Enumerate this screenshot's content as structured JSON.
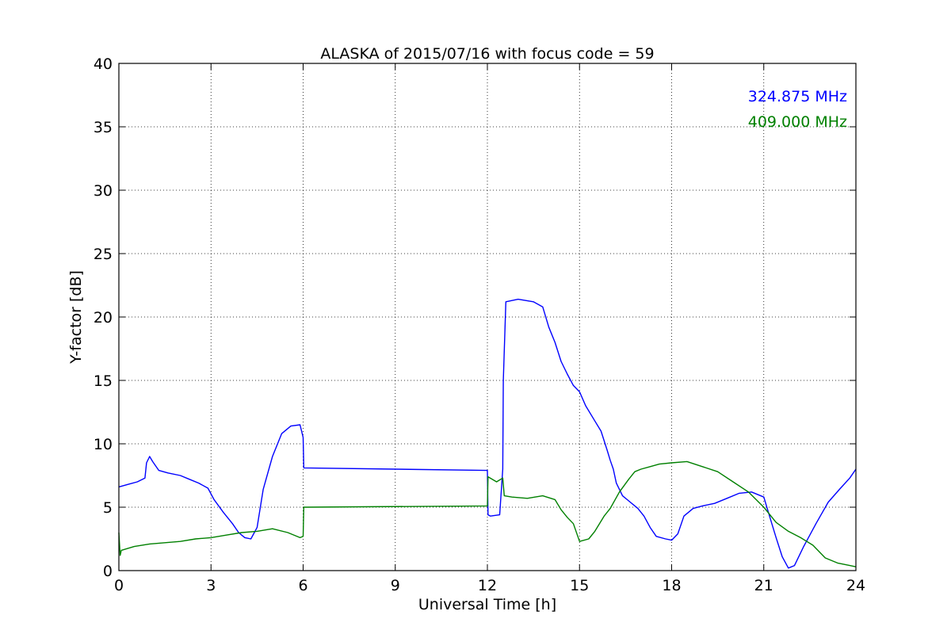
{
  "chart_data": {
    "type": "line",
    "title": "ALASKA of 2015/07/16 with focus code = 59",
    "xlabel": "Universal Time [h]",
    "ylabel": "Y-factor [dB]",
    "xlim": [
      0,
      24
    ],
    "ylim": [
      0,
      40
    ],
    "xticks": [
      0,
      3,
      6,
      9,
      12,
      15,
      18,
      21,
      24
    ],
    "yticks": [
      0,
      5,
      10,
      15,
      20,
      25,
      30,
      35,
      40
    ],
    "grid": true,
    "legend_position": "top-right",
    "series": [
      {
        "name": "324.875 MHz",
        "color": "#0000ff",
        "x": [
          0,
          0.3,
          0.6,
          0.85,
          0.9,
          1.0,
          1.1,
          1.3,
          1.6,
          2.0,
          2.3,
          2.6,
          2.9,
          3.1,
          3.4,
          3.7,
          3.9,
          4.1,
          4.3,
          4.5,
          4.7,
          5.0,
          5.3,
          5.6,
          5.9,
          6.0,
          6.02,
          12.0,
          12.02,
          12.1,
          12.4,
          12.5,
          12.52,
          12.6,
          13.0,
          13.5,
          13.8,
          14.0,
          14.2,
          14.4,
          14.6,
          14.8,
          15.0,
          15.2,
          15.5,
          15.7,
          15.9,
          16.0,
          16.1,
          16.2,
          16.4,
          16.6,
          16.9,
          17.1,
          17.3,
          17.5,
          17.8,
          18.0,
          18.2,
          18.4,
          18.7,
          19.0,
          19.4,
          19.8,
          20.2,
          20.6,
          21.0,
          21.2,
          21.4,
          21.6,
          21.8,
          22.0,
          22.3,
          22.7,
          23.1,
          23.5,
          23.8,
          24.0
        ],
        "y": [
          6.6,
          6.8,
          7.0,
          7.3,
          8.5,
          9.0,
          8.6,
          7.9,
          7.7,
          7.5,
          7.2,
          6.9,
          6.5,
          5.6,
          4.6,
          3.7,
          3.0,
          2.6,
          2.5,
          3.4,
          6.4,
          9.0,
          10.8,
          11.4,
          11.5,
          10.5,
          8.1,
          7.9,
          4.4,
          4.3,
          4.4,
          8.0,
          15.0,
          21.2,
          21.4,
          21.2,
          20.8,
          19.2,
          18.0,
          16.5,
          15.5,
          14.6,
          14.1,
          13.0,
          11.8,
          11.0,
          9.5,
          8.7,
          8.0,
          6.9,
          5.9,
          5.5,
          4.9,
          4.3,
          3.4,
          2.7,
          2.5,
          2.4,
          2.9,
          4.3,
          4.9,
          5.1,
          5.3,
          5.7,
          6.1,
          6.2,
          5.8,
          4.2,
          2.6,
          1.1,
          0.2,
          0.4,
          1.9,
          3.7,
          5.4,
          6.5,
          7.3,
          8.0
        ]
      },
      {
        "name": "409.000 MHz",
        "color": "#008000",
        "x": [
          0,
          0.04,
          0.08,
          0.5,
          1.0,
          1.5,
          2.0,
          2.5,
          3.0,
          3.5,
          4.0,
          4.5,
          5.0,
          5.5,
          5.9,
          6.0,
          6.02,
          12.0,
          12.02,
          12.3,
          12.5,
          12.55,
          12.8,
          13.3,
          13.8,
          14.2,
          14.4,
          14.6,
          14.8,
          15.0,
          15.3,
          15.5,
          15.8,
          16.0,
          16.3,
          16.6,
          16.8,
          17.0,
          17.3,
          17.6,
          18.0,
          18.5,
          19.0,
          19.5,
          20.0,
          20.5,
          21.0,
          21.4,
          21.8,
          22.2,
          22.6,
          23.0,
          23.4,
          23.8,
          24.0
        ],
        "y": [
          3.0,
          1.2,
          1.6,
          1.9,
          2.1,
          2.2,
          2.3,
          2.5,
          2.6,
          2.8,
          3.0,
          3.1,
          3.3,
          3.0,
          2.6,
          2.7,
          5.0,
          5.1,
          7.4,
          7.0,
          7.3,
          5.9,
          5.8,
          5.7,
          5.9,
          5.6,
          4.8,
          4.2,
          3.7,
          2.3,
          2.5,
          3.1,
          4.3,
          4.9,
          6.2,
          7.2,
          7.8,
          8.0,
          8.2,
          8.4,
          8.5,
          8.6,
          8.2,
          7.8,
          7.0,
          6.2,
          5.0,
          3.8,
          3.1,
          2.6,
          2.0,
          1.0,
          0.6,
          0.4,
          0.3
        ]
      }
    ]
  }
}
